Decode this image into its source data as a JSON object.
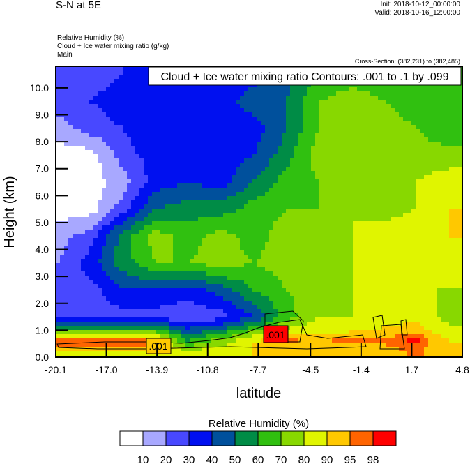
{
  "header": {
    "title": "S-N at 5E",
    "init": "Init: 2018-10-12_00:00:00",
    "valid": "Valid: 2018-10-16_12:00:00",
    "fields": [
      "Relative Humidity   (%)",
      "Cloud + Ice water mixing ratio   (g/kg)",
      "Main"
    ],
    "cross_section": "Cross-Section: (382,231) to (382,485)"
  },
  "chart_data": {
    "type": "heatmap",
    "title": "Cloud + Ice water mixing ratio Contours: .001 to .1 by .099",
    "xlabel": "latitude",
    "ylabel": "Height (km)",
    "xlim": [
      -20.1,
      4.8
    ],
    "ylim": [
      0,
      10.8
    ],
    "xticks": [
      "-20.1",
      "-17.0",
      "-13.9",
      "-10.8",
      "-7.7",
      "-4.5",
      "-1.4",
      "1.7",
      "4.8"
    ],
    "yticks": [
      "0.0",
      "1.0",
      "2.0",
      "3.0",
      "4.0",
      "5.0",
      "6.0",
      "7.0",
      "8.0",
      "9.0",
      "10.0"
    ],
    "contour_labels": [
      ".001",
      ".001"
    ],
    "grid_lat": [
      -20,
      -18,
      -16,
      -14,
      -12,
      -10,
      -8,
      -6,
      -4,
      -2,
      0,
      2,
      4
    ],
    "grid_height_km": [
      0.2,
      0.6,
      1.5,
      2.5,
      3.5,
      4.5,
      5.5,
      6.5,
      7.5,
      8.5,
      9.5,
      10.5
    ],
    "rh_values": [
      [
        88,
        88,
        88,
        88,
        85,
        85,
        90,
        92,
        95,
        92,
        92,
        96,
        90
      ],
      [
        99,
        99,
        99,
        99,
        60,
        75,
        90,
        96,
        95,
        96,
        96,
        99,
        90
      ],
      [
        25,
        25,
        25,
        25,
        22,
        25,
        40,
        65,
        80,
        80,
        85,
        88,
        75
      ],
      [
        25,
        25,
        40,
        40,
        35,
        45,
        60,
        70,
        75,
        80,
        80,
        80,
        80
      ],
      [
        20,
        35,
        55,
        70,
        70,
        75,
        70,
        75,
        75,
        80,
        85,
        85,
        80
      ],
      [
        15,
        25,
        55,
        75,
        65,
        75,
        65,
        75,
        75,
        80,
        85,
        90,
        90
      ],
      [
        5,
        5,
        25,
        50,
        55,
        55,
        65,
        70,
        70,
        80,
        75,
        80,
        90
      ],
      [
        5,
        5,
        15,
        35,
        40,
        35,
        50,
        65,
        70,
        75,
        75,
        80,
        85
      ],
      [
        5,
        5,
        25,
        35,
        35,
        35,
        40,
        55,
        75,
        75,
        70,
        75,
        75
      ],
      [
        15,
        25,
        30,
        40,
        35,
        35,
        35,
        50,
        70,
        80,
        75,
        70,
        60
      ],
      [
        25,
        30,
        35,
        40,
        35,
        35,
        45,
        50,
        70,
        75,
        70,
        65,
        60
      ],
      [
        25,
        25,
        30,
        30,
        35,
        35,
        35,
        45,
        60,
        65,
        65,
        65,
        60
      ]
    ],
    "colorbar": {
      "title": "Relative Humidity  (%)",
      "levels": [
        "10",
        "20",
        "30",
        "40",
        "50",
        "60",
        "70",
        "80",
        "90",
        "95",
        "98"
      ],
      "colors": [
        "#ffffff",
        "#a8a8ff",
        "#4848ff",
        "#0010f0",
        "#00509c",
        "#008c46",
        "#30c010",
        "#88d800",
        "#e0f500",
        "#ffc800",
        "#ff6400",
        "#ff0000"
      ]
    }
  }
}
